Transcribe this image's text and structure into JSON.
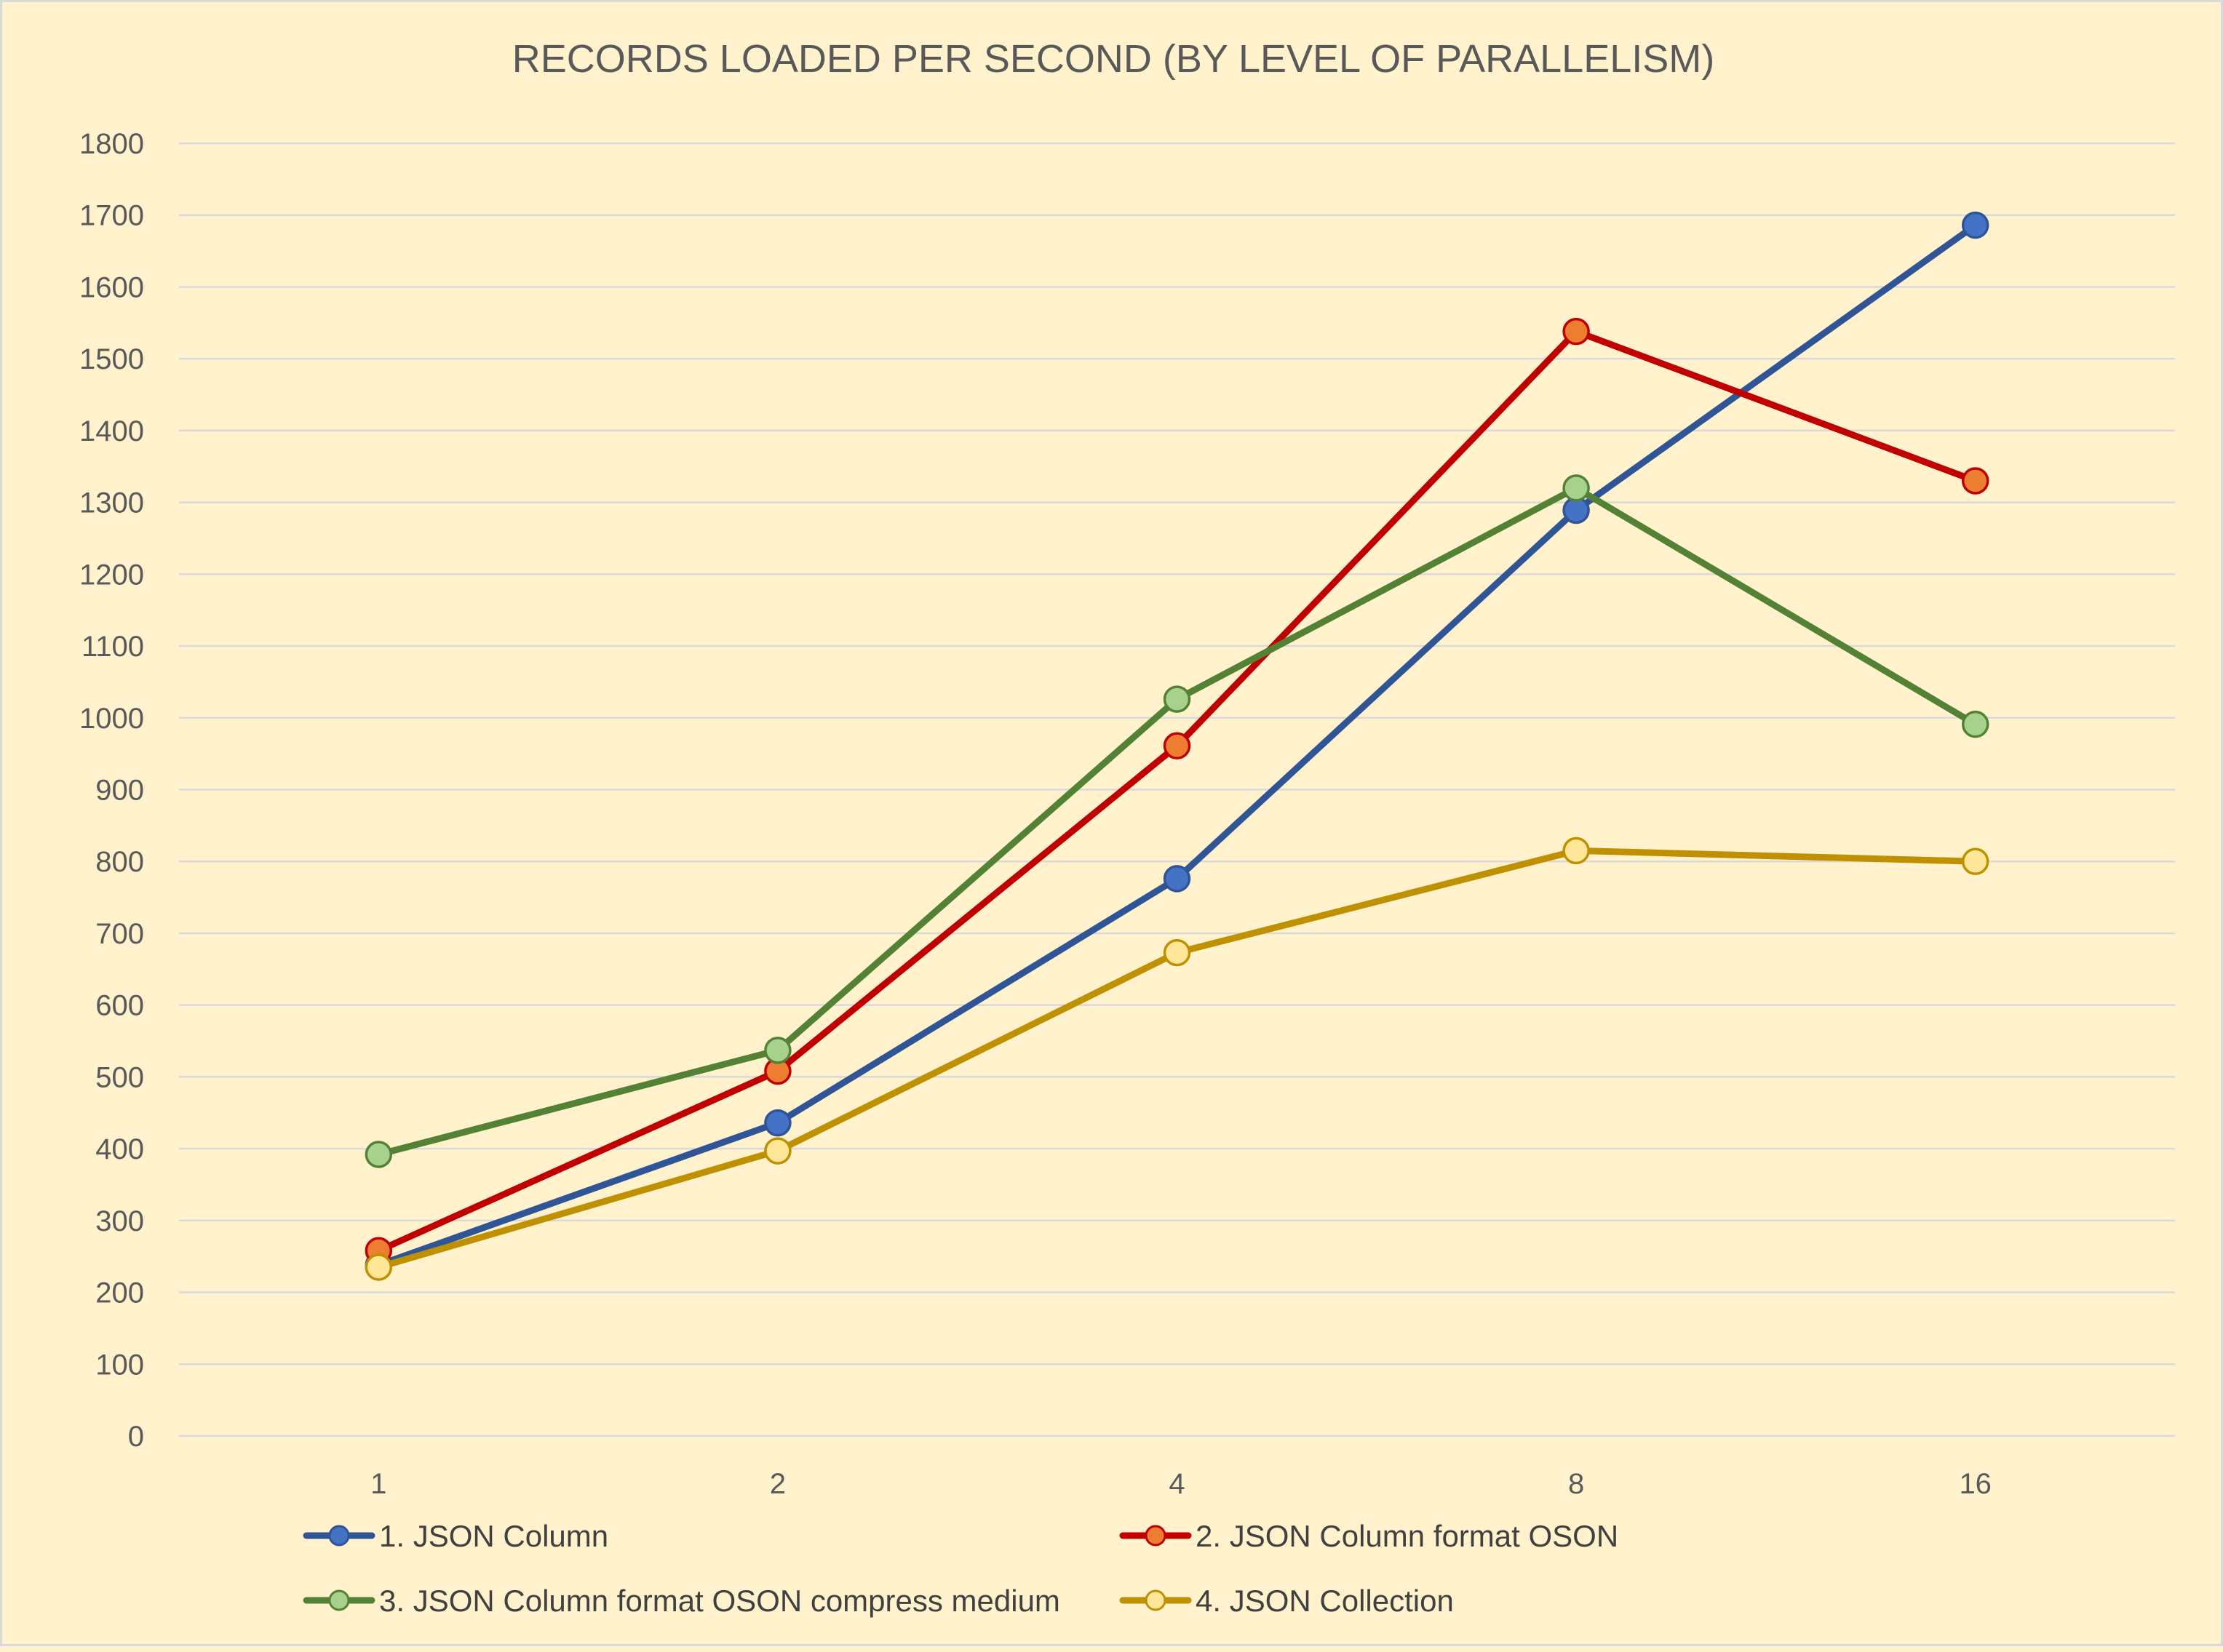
{
  "chart_data": {
    "type": "line",
    "title": "RECORDS LOADED PER SECOND (BY LEVEL OF PARALLELISM)",
    "xlabel": "",
    "ylabel": "",
    "categories": [
      "1",
      "2",
      "4",
      "8",
      "16"
    ],
    "ylim": [
      0,
      1800
    ],
    "yticks": [
      0,
      100,
      200,
      300,
      400,
      500,
      600,
      700,
      800,
      900,
      1000,
      1100,
      1200,
      1300,
      1400,
      1500,
      1600,
      1700,
      1800
    ],
    "grid": true,
    "legend": "bottom",
    "series": [
      {
        "name": "1. JSON Column",
        "values": [
          238,
          436,
          776,
          1289,
          1686
        ],
        "line_color": "#2f5597",
        "marker_fill": "#4472c4",
        "marker_stroke": "#2f5597"
      },
      {
        "name": "2. JSON Column format OSON",
        "values": [
          258,
          508,
          961,
          1538,
          1330
        ],
        "line_color": "#c00000",
        "marker_fill": "#ed7d31",
        "marker_stroke": "#c00000"
      },
      {
        "name": "3. JSON Column format OSON compress medium",
        "values": [
          392,
          537,
          1026,
          1320,
          991
        ],
        "line_color": "#548235",
        "marker_fill": "#a9d18e",
        "marker_stroke": "#548235"
      },
      {
        "name": "4. JSON Collection",
        "values": [
          235,
          397,
          673,
          815,
          800
        ],
        "line_color": "#bf9000",
        "marker_fill": "#ffe699",
        "marker_stroke": "#bf9000"
      }
    ]
  }
}
